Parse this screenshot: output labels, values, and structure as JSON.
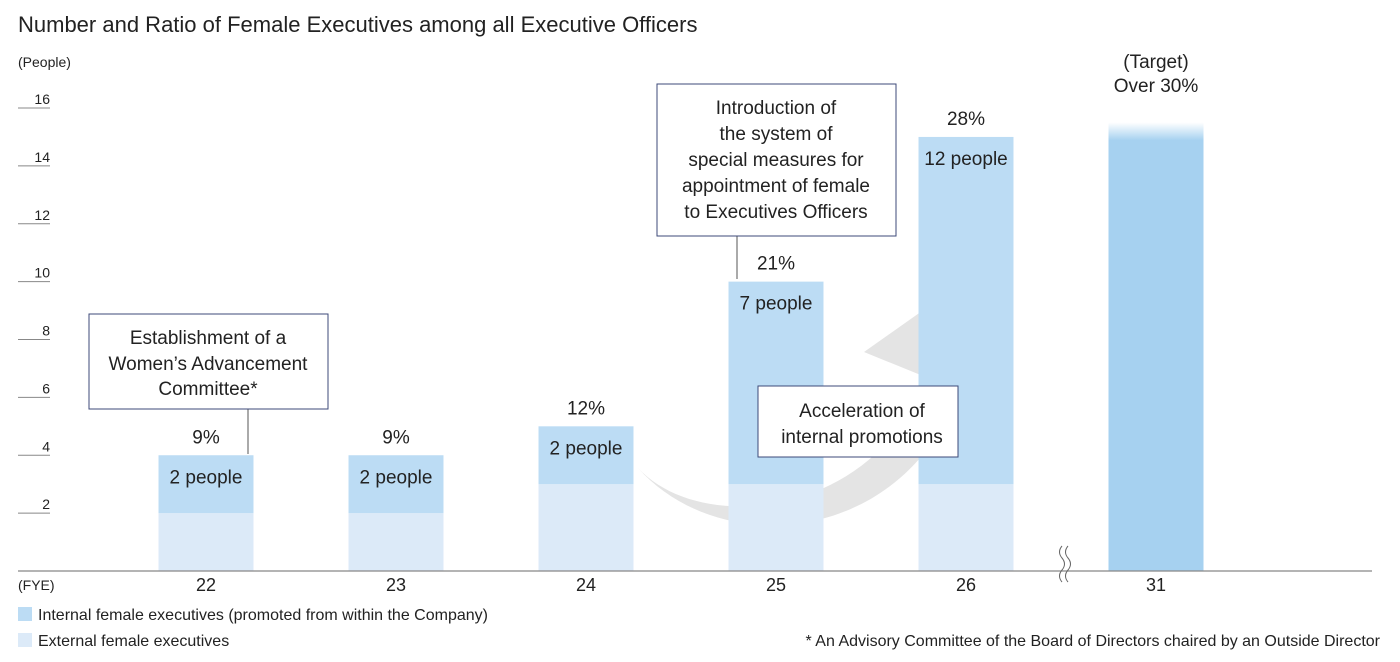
{
  "chart_data": {
    "type": "bar",
    "title": "Number and Ratio of Female Executives among all Executive Officers",
    "ylabel": "(People)",
    "xlabel": "(FYE)",
    "ylim": [
      0,
      16
    ],
    "yticks": [
      "2",
      "4",
      "6",
      "8",
      "10",
      "12",
      "14",
      "16"
    ],
    "categories": [
      "22",
      "23",
      "24",
      "25",
      "26",
      "31"
    ],
    "series": [
      {
        "name": "External female executives",
        "values": [
          2,
          2,
          3,
          3,
          3,
          null
        ]
      },
      {
        "name": "Internal female executives (promoted from within the Company)",
        "values": [
          2,
          2,
          2,
          7,
          12,
          null
        ]
      }
    ],
    "total_labels": [
      "2 people",
      "2 people",
      "2 people",
      "7 people",
      "12 people",
      ""
    ],
    "ratios": [
      "9%",
      "9%",
      "12%",
      "21%",
      "28%",
      ""
    ],
    "target": {
      "category": "31",
      "line1": "(Target)",
      "line2": "Over 30%",
      "value": 15
    },
    "grid": false,
    "legend_position": "bottom-left",
    "colors": {
      "internal": "#bcdcf4",
      "external": "#dceaf8",
      "target": "#a6d1f0",
      "axis": "#888888"
    },
    "annotations": {
      "committee": [
        "Establishment of a",
        "Women’s Advancement",
        "Committee*"
      ],
      "special_measures": [
        "Introduction of",
        "the system of",
        "special measures for",
        "appointment of female",
        "to Executives Officers"
      ],
      "acceleration": [
        "Acceleration of",
        "internal promotions"
      ]
    },
    "footnote": "* An Advisory Committee of the Board of Directors chaired by an Outside Director"
  }
}
